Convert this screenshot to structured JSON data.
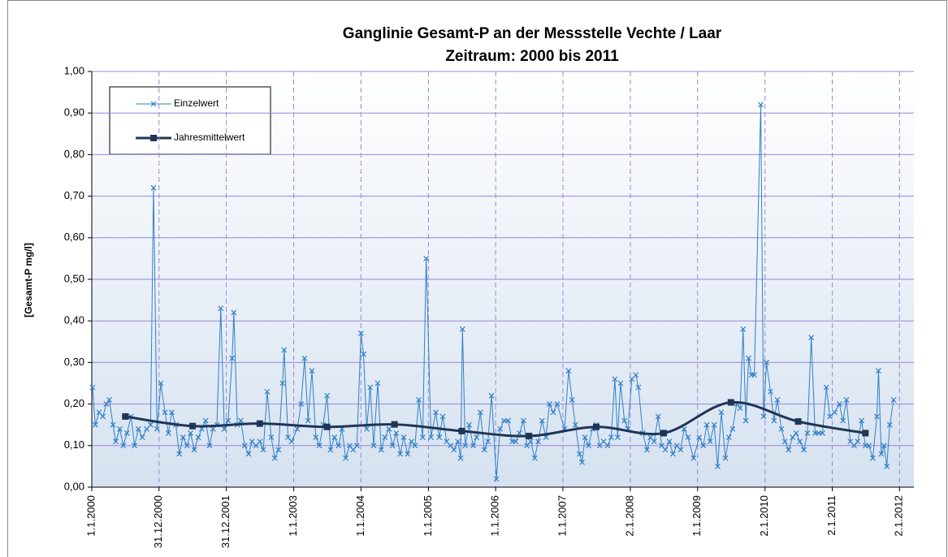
{
  "chart_data": {
    "type": "line",
    "title": "Ganglinie Gesamt-P an der Messstelle Vechte / Laar",
    "subtitle": "Zeitraum: 2000 bis 2011",
    "y_label": "[Gesamt-P mg/l]",
    "xlim": [
      "2000-01-01",
      "2012-03-20"
    ],
    "xticks": [
      {
        "value": "2000-01-01",
        "label": "1.1.2000"
      },
      {
        "value": "2000-12-31",
        "label": "31.12.2000"
      },
      {
        "value": "2001-12-31",
        "label": "31.12.2001"
      },
      {
        "value": "2003-01-01",
        "label": "1.1.2003"
      },
      {
        "value": "2004-01-01",
        "label": "1.1.2004"
      },
      {
        "value": "2005-01-01",
        "label": "1.1.2005"
      },
      {
        "value": "2006-01-01",
        "label": "1.1.2006"
      },
      {
        "value": "2007-01-01",
        "label": "1.1.2007"
      },
      {
        "value": "2008-01-02",
        "label": "2.1.2008"
      },
      {
        "value": "2009-01-01",
        "label": "1.1.2009"
      },
      {
        "value": "2010-01-02",
        "label": "2.1.2010"
      },
      {
        "value": "2011-01-02",
        "label": "2.1.2011"
      },
      {
        "value": "2012-01-02",
        "label": "2.1.2012"
      }
    ],
    "ylim": [
      0,
      1
    ],
    "yticks": [
      {
        "value": 0,
        "label": "0,00"
      },
      {
        "value": 0.1,
        "label": "0,10"
      },
      {
        "value": 0.2,
        "label": "0,20"
      },
      {
        "value": 0.3,
        "label": "0,30"
      },
      {
        "value": 0.4,
        "label": "0,40"
      },
      {
        "value": 0.5,
        "label": "0,50"
      },
      {
        "value": 0.6,
        "label": "0,60"
      },
      {
        "value": 0.7,
        "label": "0,70"
      },
      {
        "value": 0.8,
        "label": "0,80"
      },
      {
        "value": 0.9,
        "label": "0,90"
      },
      {
        "value": 1,
        "label": "1,00"
      }
    ],
    "grid": true,
    "legend": "upper left",
    "series": [
      {
        "name": "Einzelwert",
        "color": "#2f80c8",
        "marker": "x",
        "x": [
          "2000-01-05",
          "2000-01-20",
          "2000-02-10",
          "2000-03-01",
          "2000-03-20",
          "2000-04-05",
          "2000-04-25",
          "2000-05-10",
          "2000-06-01",
          "2000-06-20",
          "2000-07-10",
          "2000-08-01",
          "2000-08-20",
          "2000-09-10",
          "2000-10-01",
          "2000-10-25",
          "2000-11-15",
          "2000-12-01",
          "2000-12-20",
          "2001-01-10",
          "2001-02-01",
          "2001-02-20",
          "2001-03-10",
          "2001-04-01",
          "2001-04-20",
          "2001-05-10",
          "2001-06-01",
          "2001-06-20",
          "2001-07-10",
          "2001-08-01",
          "2001-08-20",
          "2001-09-10",
          "2001-10-01",
          "2001-10-20",
          "2001-11-10",
          "2001-12-01",
          "2001-12-20",
          "2002-01-10",
          "2002-02-01",
          "2002-02-10",
          "2002-03-01",
          "2002-03-20",
          "2002-04-10",
          "2002-05-01",
          "2002-05-20",
          "2002-06-10",
          "2002-07-01",
          "2002-07-20",
          "2002-08-10",
          "2002-09-01",
          "2002-09-20",
          "2002-10-10",
          "2002-11-01",
          "2002-11-10",
          "2002-12-01",
          "2002-12-20",
          "2003-01-20",
          "2003-02-10",
          "2003-03-01",
          "2003-03-20",
          "2003-04-10",
          "2003-05-01",
          "2003-05-20",
          "2003-06-10",
          "2003-07-01",
          "2003-07-20",
          "2003-08-10",
          "2003-09-01",
          "2003-09-20",
          "2003-10-10",
          "2003-11-01",
          "2003-11-20",
          "2003-12-10",
          "2004-01-01",
          "2004-01-15",
          "2004-02-01",
          "2004-02-20",
          "2004-03-10",
          "2004-04-01",
          "2004-04-20",
          "2004-05-10",
          "2004-06-01",
          "2004-06-20",
          "2004-07-10",
          "2004-08-01",
          "2004-08-20",
          "2004-09-10",
          "2004-10-01",
          "2004-10-20",
          "2004-11-10",
          "2004-12-01",
          "2004-12-20",
          "2005-01-15",
          "2005-02-10",
          "2005-03-01",
          "2005-03-20",
          "2005-04-10",
          "2005-05-01",
          "2005-05-20",
          "2005-06-10",
          "2005-06-25",
          "2005-07-05",
          "2005-07-20",
          "2005-08-10",
          "2005-09-01",
          "2005-09-20",
          "2005-10-10",
          "2005-11-01",
          "2005-11-20",
          "2005-12-10",
          "2006-01-05",
          "2006-01-25",
          "2006-02-15",
          "2006-03-10",
          "2006-04-01",
          "2006-04-20",
          "2006-05-10",
          "2006-06-01",
          "2006-06-20",
          "2006-07-10",
          "2006-08-01",
          "2006-08-20",
          "2006-09-10",
          "2006-10-01",
          "2006-10-20",
          "2006-11-10",
          "2006-12-01",
          "2007-01-10",
          "2007-02-01",
          "2007-02-20",
          "2007-03-10",
          "2007-04-01",
          "2007-04-15",
          "2007-05-01",
          "2007-05-20",
          "2007-06-10",
          "2007-07-01",
          "2007-07-20",
          "2007-08-10",
          "2007-09-01",
          "2007-09-20",
          "2007-10-10",
          "2007-10-25",
          "2007-11-10",
          "2007-12-01",
          "2007-12-20",
          "2008-01-10",
          "2008-02-01",
          "2008-02-15",
          "2008-03-10",
          "2008-04-01",
          "2008-04-20",
          "2008-05-10",
          "2008-06-01",
          "2008-06-20",
          "2008-07-10",
          "2008-08-01",
          "2008-08-20",
          "2008-09-10",
          "2008-10-01",
          "2008-10-20",
          "2008-11-10",
          "2008-12-10",
          "2009-01-10",
          "2009-02-01",
          "2009-02-20",
          "2009-03-10",
          "2009-04-01",
          "2009-04-20",
          "2009-05-10",
          "2009-06-01",
          "2009-06-20",
          "2009-07-10",
          "2009-08-01",
          "2009-08-20",
          "2009-09-05",
          "2009-09-20",
          "2009-10-05",
          "2009-10-20",
          "2009-11-05",
          "2009-12-10",
          "2009-12-25",
          "2010-01-10",
          "2010-02-01",
          "2010-02-20",
          "2010-03-10",
          "2010-04-01",
          "2010-04-20",
          "2010-05-10",
          "2010-06-01",
          "2010-06-20",
          "2010-07-10",
          "2010-08-01",
          "2010-08-20",
          "2010-09-10",
          "2010-10-01",
          "2010-10-20",
          "2010-11-10",
          "2010-12-01",
          "2010-12-20",
          "2011-01-15",
          "2011-02-10",
          "2011-03-01",
          "2011-03-20",
          "2011-04-10",
          "2011-05-01",
          "2011-05-20",
          "2011-06-10",
          "2011-07-01",
          "2011-07-20",
          "2011-08-10",
          "2011-09-01",
          "2011-09-10",
          "2011-09-25",
          "2011-10-10",
          "2011-10-25",
          "2011-11-10",
          "2011-12-01"
        ],
        "values": [
          0.24,
          0.15,
          0.18,
          0.17,
          0.2,
          0.21,
          0.15,
          0.11,
          0.14,
          0.1,
          0.13,
          0.17,
          0.1,
          0.14,
          0.12,
          0.14,
          0.15,
          0.72,
          0.14,
          0.25,
          0.18,
          0.13,
          0.18,
          0.15,
          0.08,
          0.12,
          0.1,
          0.13,
          0.09,
          0.12,
          0.14,
          0.16,
          0.1,
          0.14,
          0.15,
          0.43,
          0.14,
          0.16,
          0.31,
          0.42,
          0.15,
          0.16,
          0.1,
          0.08,
          0.11,
          0.1,
          0.11,
          0.09,
          0.23,
          0.12,
          0.07,
          0.09,
          0.25,
          0.33,
          0.12,
          0.11,
          0.14,
          0.2,
          0.31,
          0.16,
          0.28,
          0.12,
          0.1,
          0.15,
          0.22,
          0.09,
          0.12,
          0.1,
          0.14,
          0.07,
          0.1,
          0.09,
          0.1,
          0.37,
          0.32,
          0.14,
          0.24,
          0.1,
          0.25,
          0.09,
          0.12,
          0.14,
          0.1,
          0.13,
          0.08,
          0.12,
          0.08,
          0.11,
          0.1,
          0.21,
          0.12,
          0.55,
          0.12,
          0.18,
          0.12,
          0.17,
          0.11,
          0.1,
          0.09,
          0.11,
          0.07,
          0.38,
          0.1,
          0.15,
          0.1,
          0.12,
          0.18,
          0.09,
          0.11,
          0.22,
          0.02,
          0.14,
          0.16,
          0.16,
          0.11,
          0.11,
          0.13,
          0.16,
          0.1,
          0.11,
          0.07,
          0.11,
          0.16,
          0.12,
          0.2,
          0.18,
          0.2,
          0.14,
          0.28,
          0.21,
          0.15,
          0.08,
          0.06,
          0.12,
          0.1,
          0.14,
          0.15,
          0.1,
          0.11,
          0.1,
          0.12,
          0.26,
          0.12,
          0.25,
          0.16,
          0.14,
          0.26,
          0.27,
          0.24,
          0.13,
          0.09,
          0.12,
          0.11,
          0.17,
          0.1,
          0.09,
          0.11,
          0.08,
          0.1,
          0.09,
          0.14,
          0.12,
          0.07,
          0.12,
          0.1,
          0.15,
          0.11,
          0.15,
          0.05,
          0.18,
          0.07,
          0.12,
          0.14,
          0.2,
          0.19,
          0.38,
          0.16,
          0.31,
          0.27,
          0.27,
          0.92,
          0.17,
          0.3,
          0.23,
          0.16,
          0.21,
          0.14,
          0.11,
          0.09,
          0.12,
          0.13,
          0.11,
          0.09,
          0.13,
          0.36,
          0.13,
          0.13,
          0.13,
          0.24,
          0.17,
          0.18,
          0.2,
          0.16,
          0.21,
          0.11,
          0.1,
          0.11,
          0.16,
          0.1,
          0.1,
          0.07,
          0.17,
          0.28,
          0.08,
          0.1,
          0.05,
          0.15,
          0.21
        ]
      },
      {
        "name": "Jahresmittelwert",
        "color": "#1f3556",
        "marker": "square",
        "smooth": true,
        "x": [
          "2000-07-01",
          "2001-07-01",
          "2002-07-01",
          "2003-07-01",
          "2004-07-01",
          "2005-07-01",
          "2006-07-01",
          "2007-07-01",
          "2008-07-01",
          "2009-07-01",
          "2010-07-01",
          "2011-07-01"
        ],
        "values": [
          0.17,
          0.147,
          0.153,
          0.145,
          0.151,
          0.135,
          0.123,
          0.145,
          0.13,
          0.204,
          0.158,
          0.13
        ]
      }
    ]
  }
}
